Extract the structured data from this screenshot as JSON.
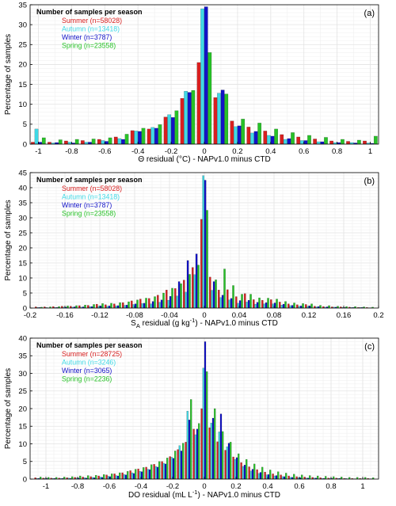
{
  "colors": {
    "Summer": "#d81f1f",
    "Autumn": "#3fd9e6",
    "Winter": "#1212c8",
    "Spring": "#27c227",
    "grid": "#e4e4e4",
    "axis": "#000000",
    "legend_title": "#000000"
  },
  "chart_data": [
    {
      "type": "bar",
      "panel_label": "(a)",
      "ylabel": "Percentage of samples",
      "xlabel_parts": [
        "Θ residual (°C) - NAPv1.0 minus CTD"
      ],
      "xlim": [
        -1.05,
        1.05
      ],
      "ylim": [
        0,
        35
      ],
      "xticks": [
        -1,
        -0.8,
        -0.6,
        -0.4,
        -0.2,
        0,
        0.2,
        0.4,
        0.6,
        0.8,
        1
      ],
      "yticks": [
        0,
        5,
        10,
        15,
        20,
        25,
        30,
        35
      ],
      "bin_width": 0.1,
      "grid": true,
      "legend": {
        "position": "top-left",
        "title": "Number of samples per season",
        "entries": [
          "Summer (n=58028)",
          "Autumn (n=13418)",
          "Winter (n=3787)",
          "Spring (n=23558)"
        ]
      },
      "x": [
        -1,
        -0.9,
        -0.8,
        -0.7,
        -0.6,
        -0.5,
        -0.4,
        -0.3,
        -0.2,
        -0.1,
        0,
        0.1,
        0.2,
        0.3,
        0.4,
        0.5,
        0.6,
        0.7,
        0.8,
        0.9,
        1
      ],
      "series": [
        {
          "name": "Summer",
          "values": [
            0.5,
            0.5,
            0.8,
            0.9,
            1.2,
            1.8,
            3.4,
            3.8,
            6.8,
            11.5,
            20.5,
            11.7,
            5.8,
            4.3,
            3.3,
            2.4,
            1.8,
            1.3,
            0.8,
            0.7,
            0.8
          ]
        },
        {
          "name": "Autumn",
          "values": [
            3.8,
            0.3,
            0.5,
            0.5,
            0.9,
            1.4,
            3.3,
            4.2,
            7.4,
            13.3,
            34.0,
            12.8,
            4.4,
            2.8,
            2.2,
            1.2,
            0.9,
            0.6,
            0.4,
            0.4,
            0.3
          ]
        },
        {
          "name": "Winter",
          "values": [
            0.5,
            0.4,
            0.3,
            0.5,
            0.7,
            1.2,
            3.2,
            4.0,
            6.7,
            13.0,
            34.5,
            13.6,
            4.6,
            3.2,
            2.0,
            1.4,
            0.9,
            0.6,
            0.4,
            0.3,
            0.2
          ]
        },
        {
          "name": "Spring",
          "values": [
            1.6,
            1.1,
            1.2,
            1.3,
            1.6,
            2.5,
            4.0,
            4.9,
            8.4,
            13.5,
            23.0,
            12.6,
            6.3,
            5.3,
            3.8,
            2.9,
            2.2,
            1.7,
            1.2,
            1.0,
            2.0
          ]
        }
      ]
    },
    {
      "type": "bar",
      "panel_label": "(b)",
      "ylabel": "Percentage of samples",
      "xlabel_parts": [
        "S",
        "A",
        " residual (g kg",
        "-1",
        ") - NAPv1.0 minus CTD"
      ],
      "xlim": [
        -0.2,
        0.2
      ],
      "ylim": [
        0,
        45
      ],
      "xticks": [
        -0.2,
        -0.16,
        -0.12,
        -0.08,
        -0.04,
        0,
        0.04,
        0.08,
        0.12,
        0.16,
        0.2
      ],
      "yticks": [
        0,
        5,
        10,
        15,
        20,
        25,
        30,
        35,
        40,
        45
      ],
      "bin_width": 0.01,
      "grid": true,
      "legend": {
        "position": "top-left",
        "title": "Number of samples per season",
        "entries": [
          "Summer (n=58028)",
          "Autumn (n=13418)",
          "Winter (n=3787)",
          "Spring (n=23558)"
        ]
      },
      "x": [
        -0.19,
        -0.18,
        -0.17,
        -0.16,
        -0.15,
        -0.14,
        -0.13,
        -0.12,
        -0.11,
        -0.1,
        -0.09,
        -0.08,
        -0.07,
        -0.06,
        -0.05,
        -0.04,
        -0.03,
        -0.02,
        -0.01,
        0,
        0.01,
        0.02,
        0.03,
        0.04,
        0.05,
        0.06,
        0.07,
        0.08,
        0.09,
        0.1,
        0.11,
        0.12,
        0.13,
        0.14,
        0.15,
        0.16,
        0.17,
        0.18,
        0.19
      ],
      "series": [
        {
          "name": "Summer",
          "values": [
            0.4,
            0.4,
            0.5,
            0.6,
            0.6,
            0.8,
            0.9,
            1.3,
            1.1,
            1.4,
            1.8,
            2.4,
            3.0,
            3.2,
            4.3,
            6.0,
            6.5,
            9.3,
            13.5,
            29.5,
            10.3,
            6.0,
            6.1,
            3.8,
            4.8,
            2.8,
            2.6,
            2.8,
            2.0,
            1.4,
            1.1,
            1.2,
            0.6,
            0.5,
            0.4,
            0.4,
            0.3,
            0.2,
            0.2
          ]
        },
        {
          "name": "Autumn",
          "values": [
            0.2,
            0.2,
            0.2,
            0.3,
            0.3,
            0.3,
            0.5,
            0.6,
            0.6,
            0.7,
            0.9,
            1.2,
            1.5,
            1.4,
            1.9,
            2.6,
            4.0,
            5.3,
            11.1,
            44.0,
            5.9,
            3.5,
            2.7,
            1.6,
            2.0,
            1.3,
            1.4,
            1.4,
            1.0,
            0.8,
            0.6,
            0.6,
            0.4,
            0.3,
            0.3,
            0.2,
            0.2,
            0.2,
            0.1
          ]
        },
        {
          "name": "Winter",
          "values": [
            0.2,
            0.1,
            0.2,
            0.3,
            0.4,
            0.4,
            0.5,
            0.7,
            0.7,
            0.8,
            1.0,
            1.4,
            1.6,
            2.2,
            2.7,
            3.9,
            8.8,
            15.8,
            18.0,
            42.5,
            8.8,
            4.3,
            3.2,
            2.5,
            2.6,
            1.9,
            1.8,
            1.7,
            1.3,
            0.9,
            0.7,
            0.7,
            0.5,
            0.4,
            0.3,
            0.2,
            0.2,
            0.2,
            0.1
          ]
        },
        {
          "name": "Spring",
          "values": [
            0.3,
            0.4,
            0.5,
            0.7,
            0.8,
            1.0,
            1.2,
            1.5,
            1.6,
            1.8,
            2.1,
            2.7,
            3.3,
            3.8,
            5.0,
            6.6,
            8.1,
            11.2,
            14.3,
            32.5,
            9.4,
            13.0,
            7.5,
            4.6,
            4.6,
            3.4,
            3.3,
            3.0,
            2.2,
            1.7,
            1.5,
            1.4,
            0.9,
            0.8,
            0.6,
            0.5,
            0.5,
            0.4,
            0.3
          ]
        }
      ]
    },
    {
      "type": "bar",
      "panel_label": "(c)",
      "ylabel": "Percentage of samples",
      "xlabel_parts": [
        "DO residual (mL L",
        "-1",
        ") - NAPv1.0 minus CTD"
      ],
      "xlim": [
        -1.1,
        1.1
      ],
      "ylim": [
        0,
        40
      ],
      "xticks": [
        -1,
        -0.8,
        -0.6,
        -0.4,
        -0.2,
        0,
        0.2,
        0.4,
        0.6,
        0.8,
        1
      ],
      "yticks": [
        0,
        5,
        10,
        15,
        20,
        25,
        30,
        35,
        40
      ],
      "bin_width": 0.05,
      "grid": true,
      "legend": {
        "position": "top-left",
        "title": "Number of samples per season",
        "entries": [
          "Summer (n=28725)",
          "Autumn (n=3246)",
          "Winter (n=3065)",
          "Spring (n=2236)"
        ]
      },
      "x": [
        -1.05,
        -1.0,
        -0.95,
        -0.9,
        -0.85,
        -0.8,
        -0.75,
        -0.7,
        -0.65,
        -0.6,
        -0.55,
        -0.5,
        -0.45,
        -0.4,
        -0.35,
        -0.3,
        -0.25,
        -0.2,
        -0.15,
        -0.1,
        -0.05,
        0,
        0.05,
        0.1,
        0.15,
        0.2,
        0.25,
        0.3,
        0.35,
        0.4,
        0.45,
        0.5,
        0.55,
        0.6,
        0.65,
        0.7,
        0.75,
        0.8,
        0.85,
        0.9,
        0.95,
        1.0,
        1.05
      ],
      "series": [
        {
          "name": "Summer",
          "values": [
            0.4,
            0.3,
            0.3,
            0.3,
            0.4,
            0.5,
            0.6,
            0.7,
            0.9,
            1.2,
            1.5,
            1.8,
            2.4,
            2.9,
            3.4,
            4.2,
            5.0,
            6.4,
            8.4,
            10.5,
            14.2,
            20.0,
            14.6,
            10.6,
            8.2,
            6.3,
            4.7,
            3.5,
            2.7,
            2.0,
            1.5,
            1.2,
            0.9,
            0.7,
            0.6,
            0.5,
            0.4,
            0.3,
            0.3,
            0.2,
            0.2,
            0.2,
            0.2
          ]
        },
        {
          "name": "Autumn",
          "values": [
            0.2,
            0.2,
            0.2,
            0.2,
            0.3,
            0.3,
            0.4,
            0.5,
            0.6,
            0.8,
            1.0,
            1.3,
            1.8,
            2.2,
            2.8,
            3.6,
            4.5,
            6.2,
            9.5,
            19.3,
            12.6,
            31.5,
            15.9,
            13.4,
            9.2,
            5.6,
            3.6,
            2.3,
            1.6,
            1.2,
            0.9,
            0.7,
            0.5,
            0.4,
            0.3,
            0.3,
            0.2,
            0.2,
            0.2,
            0.2,
            0.1,
            0.1,
            0.1
          ]
        },
        {
          "name": "Winter",
          "values": [
            0.2,
            0.2,
            0.2,
            0.2,
            0.2,
            0.3,
            0.3,
            0.4,
            0.5,
            0.7,
            0.9,
            1.2,
            1.6,
            2.1,
            2.7,
            3.4,
            4.3,
            5.9,
            8.0,
            16.8,
            14.2,
            39.0,
            17.3,
            18.5,
            10.2,
            6.1,
            4.0,
            2.8,
            1.9,
            1.3,
            1.0,
            0.7,
            0.5,
            0.4,
            0.3,
            0.3,
            0.2,
            0.2,
            0.2,
            0.1,
            0.1,
            0.1,
            0.1
          ]
        },
        {
          "name": "Spring",
          "values": [
            0.6,
            0.5,
            0.5,
            0.6,
            0.7,
            0.9,
            1.0,
            1.1,
            1.3,
            1.5,
            1.8,
            2.2,
            2.8,
            3.3,
            4.1,
            5.0,
            6.0,
            8.0,
            10.2,
            22.6,
            15.8,
            30.5,
            20.0,
            13.5,
            10.5,
            7.2,
            5.6,
            4.3,
            3.4,
            2.6,
            2.1,
            1.7,
            1.4,
            1.2,
            1.0,
            0.9,
            0.8,
            0.7,
            0.6,
            0.5,
            0.5,
            0.5,
            0.4
          ]
        }
      ]
    }
  ]
}
